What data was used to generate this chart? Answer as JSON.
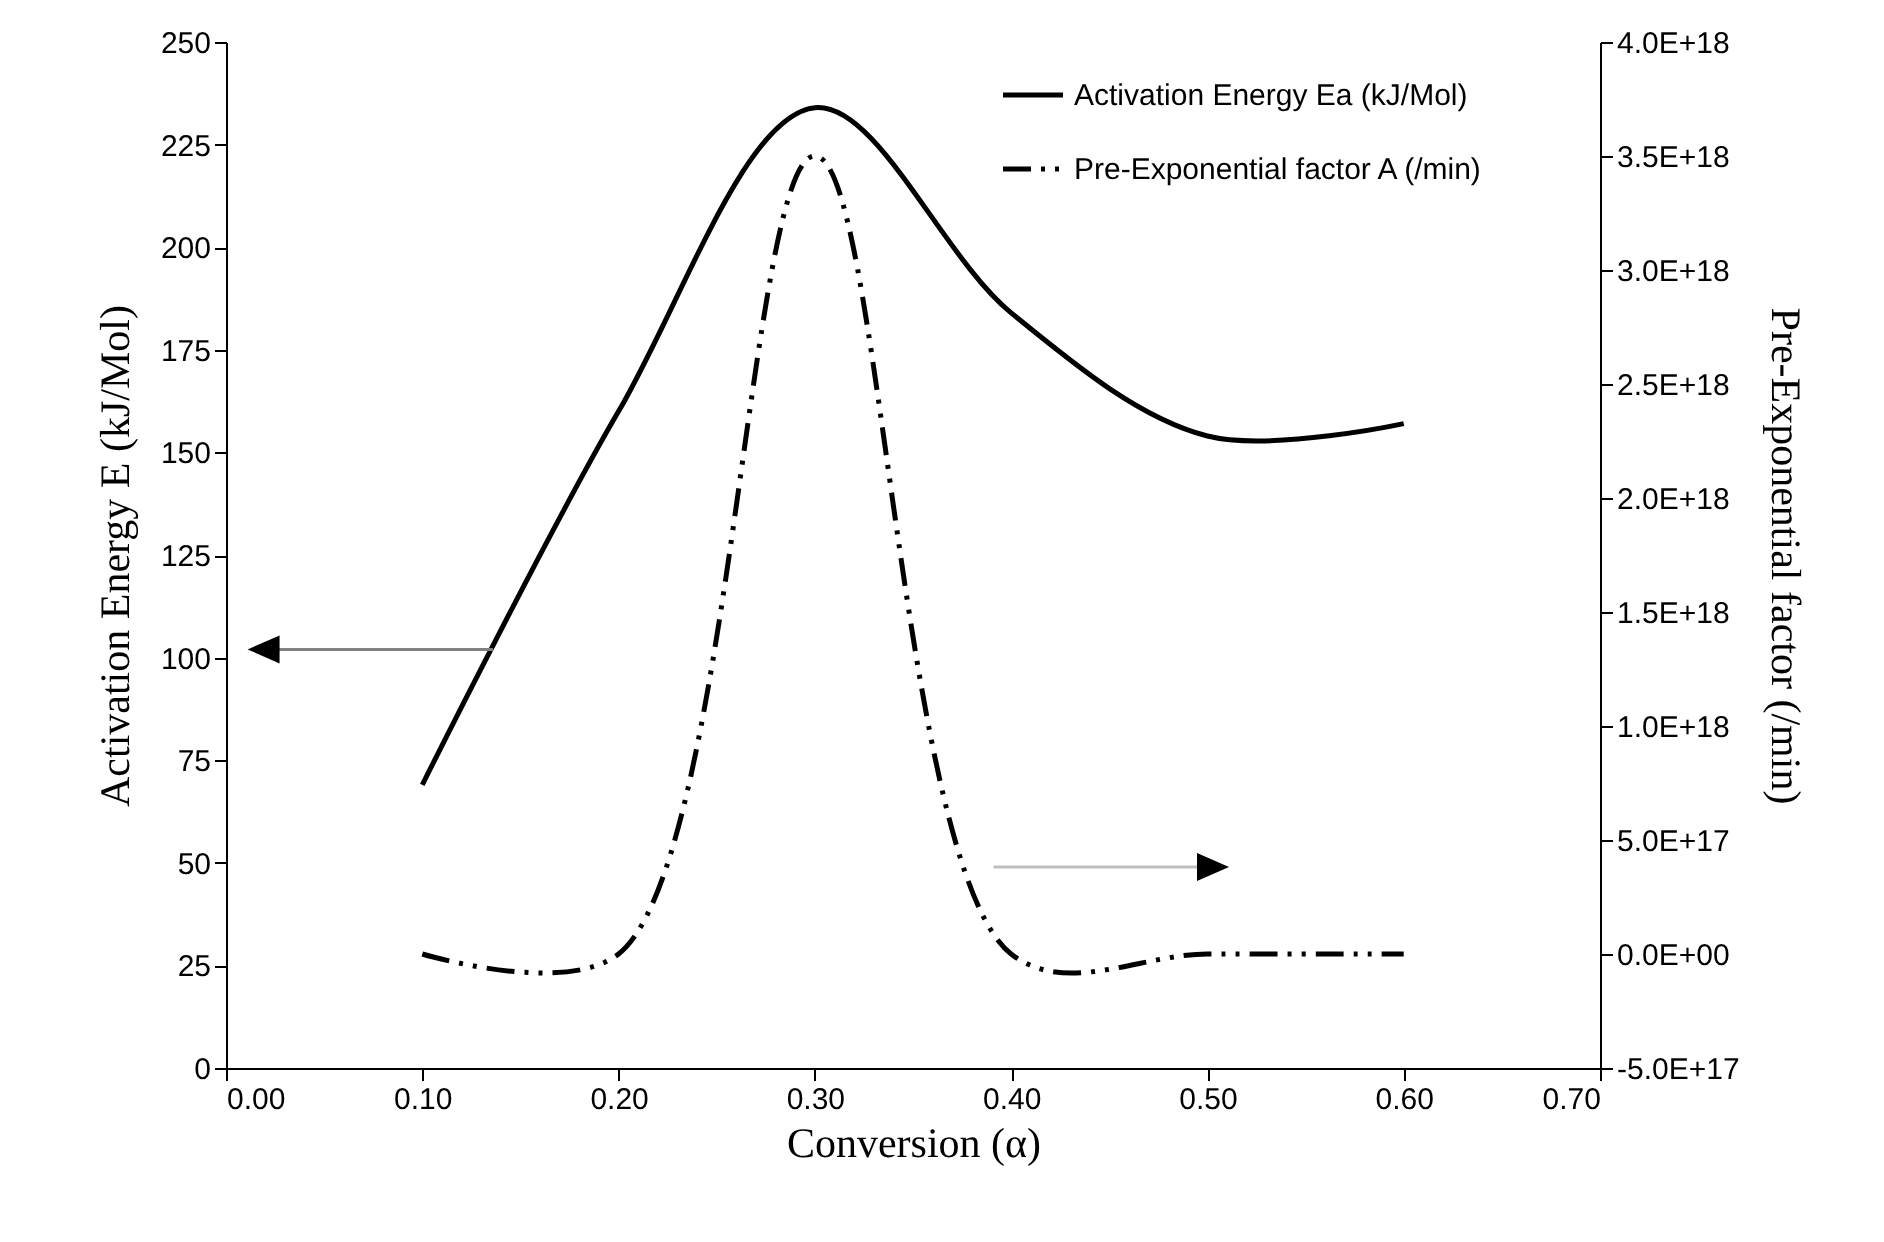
{
  "chart_data": {
    "type": "line",
    "xlabel": "Conversion (α)",
    "ylabel": "Activation Energy E (kJ/Mol)",
    "y2label": "Pre-Exponential factor (/min)",
    "x": [
      0.1,
      0.2,
      0.3,
      0.4,
      0.5,
      0.6
    ],
    "xlim": [
      0,
      0.7
    ],
    "xticks": [
      {
        "value": 0,
        "label": "0.00"
      },
      {
        "value": 0.1,
        "label": "0.10"
      },
      {
        "value": 0.2,
        "label": "0.20"
      },
      {
        "value": 0.3,
        "label": "0.30"
      },
      {
        "value": 0.4,
        "label": "0.40"
      },
      {
        "value": 0.5,
        "label": "0.50"
      },
      {
        "value": 0.6,
        "label": "0.60"
      },
      {
        "value": 0.7,
        "label": "0.70"
      }
    ],
    "ylim": [
      0,
      250
    ],
    "yticks": [
      0,
      25,
      50,
      75,
      100,
      125,
      150,
      175,
      200,
      225,
      250
    ],
    "y2lim": [
      -5e+17,
      4e+18
    ],
    "y2ticks": [
      {
        "value": -5e+17,
        "label": "-5.0E+17"
      },
      {
        "value": 0,
        "label": "0.0E+00"
      },
      {
        "value": 5e+17,
        "label": "5.0E+17"
      },
      {
        "value": 1e+18,
        "label": "1.0E+18"
      },
      {
        "value": 1.5e+18,
        "label": "1.5E+18"
      },
      {
        "value": 2e+18,
        "label": "2.0E+18"
      },
      {
        "value": 2.5e+18,
        "label": "2.5E+18"
      },
      {
        "value": 3e+18,
        "label": "3.0E+18"
      },
      {
        "value": 3.5e+18,
        "label": "3.5E+18"
      },
      {
        "value": 4e+18,
        "label": "4.0E+18"
      }
    ],
    "grid": false,
    "legend": "top right",
    "marker": "none",
    "series": [
      {
        "name": "Activation Energy Ea (kJ/Mol)",
        "color": "#000000",
        "line_style": "solid",
        "values": [
          69,
          160,
          234,
          184,
          154,
          157
        ]
      },
      {
        "name": "Pre-Exponential factor A (/min)",
        "color": "#000000",
        "line_style": "dashed",
        "axis": "y2",
        "values": [
          0,
          0,
          3.5e+18,
          0,
          0,
          0
        ]
      }
    ]
  }
}
